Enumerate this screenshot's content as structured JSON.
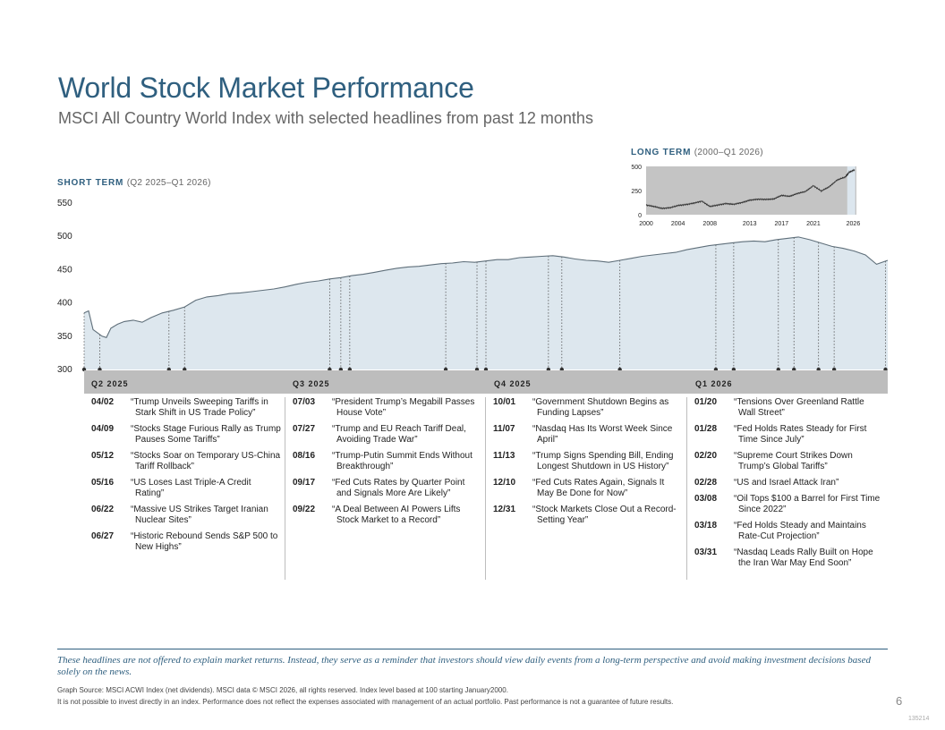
{
  "title": "World Stock Market Performance",
  "subtitle": "MSCI All Country World Index with selected headlines from past 12 months",
  "short_term": {
    "label": "SHORT TERM",
    "range": "(Q2 2025–Q1 2026)"
  },
  "long_term": {
    "label": "LONG TERM",
    "range": "(2000–Q1 2026)"
  },
  "quarters": [
    "Q2 2025",
    "Q3 2025",
    "Q4 2025",
    "Q1 2026"
  ],
  "headlines": [
    [
      {
        "date": "04/02",
        "text": "“Trump Unveils Sweeping Tariffs in Stark Shift in US Trade Policy”"
      },
      {
        "date": "04/09",
        "text": "“Stocks Stage Furious Rally as Trump Pauses Some Tariffs”"
      },
      {
        "date": "05/12",
        "text": "“Stocks Soar on Temporary US-China Tariff Rollback”"
      },
      {
        "date": "05/16",
        "text": "“US Loses Last Triple-A Credit Rating”"
      },
      {
        "date": "06/22",
        "text": "“Massive US Strikes Target Iranian Nuclear Sites”"
      },
      {
        "date": "06/27",
        "text": "“Historic Rebound Sends S&P 500 to New Highs”"
      }
    ],
    [
      {
        "date": "07/03",
        "text": "“President Trump’s Megabill Passes House Vote”"
      },
      {
        "date": "07/27",
        "text": "“Trump and EU Reach Tariff Deal, Avoiding Trade War”"
      },
      {
        "date": "08/16",
        "text": "“Trump-Putin Summit Ends Without Breakthrough”"
      },
      {
        "date": "09/17",
        "text": "“Fed Cuts Rates by Quarter Point and Signals More Are Likely”"
      },
      {
        "date": "09/22",
        "text": "“A Deal Between AI Powers Lifts Stock Market to a Record”"
      }
    ],
    [
      {
        "date": "10/01",
        "text": "“Government Shutdown Begins as Funding Lapses”"
      },
      {
        "date": "11/07",
        "text": "“Nasdaq Has Its Worst Week Since April”"
      },
      {
        "date": "11/13",
        "text": "“Trump Signs Spending Bill, Ending Longest Shutdown in US History”"
      },
      {
        "date": "12/10",
        "text": "“Fed Cuts Rates Again, Signals It May Be Done for Now”"
      },
      {
        "date": "12/31",
        "text": "“Stock Markets Close Out a Record-Setting Year”"
      }
    ],
    [
      {
        "date": "01/20",
        "text": "“Tensions Over Greenland Rattle Wall Street”"
      },
      {
        "date": "01/28",
        "text": "“Fed Holds Rates Steady for First Time Since July”"
      },
      {
        "date": "02/20",
        "text": "“Supreme Court Strikes Down Trump’s Global Tariffs”"
      },
      {
        "date": "02/28",
        "text": "“US and Israel Attack Iran”"
      },
      {
        "date": "03/08",
        "text": "“Oil Tops $100 a Barrel for First Time Since 2022”"
      },
      {
        "date": "03/18",
        "text": "“Fed Holds Steady and Maintains Rate-Cut Projection”"
      },
      {
        "date": "03/31",
        "text": "“Nasdaq Leads Rally Built on Hope the Iran War May End Soon”"
      }
    ]
  ],
  "disclaimer": "These headlines are not offered to explain market returns. Instead, they serve as a reminder that investors should view daily events from a long-term perspective and avoid making investment decisions based solely on the news.",
  "source_line1": "Graph Source: MSCI ACWI Index (net dividends). MSCI data © MSCI 2026, all rights reserved. Index level based at 100 starting January2000.",
  "source_line2": "It is not possible to invest directly in an index. Performance does not reflect the expenses associated with management of an actual portfolio. Past performance is not a guarantee of future results.",
  "page_number": "6",
  "code": "135214",
  "colors": {
    "title": "#2f5f7f",
    "area_fill": "#dde7ee",
    "area_line": "#5f6f7a",
    "bar": "#bdbdbd",
    "lt_bg": "#c4c4c4",
    "lt_hl": "#dce6ee"
  },
  "chart_data": [
    {
      "type": "area",
      "title": "SHORT TERM (Q2 2025–Q1 2026)",
      "ylim": [
        300,
        550
      ],
      "yticks": [
        550,
        500,
        450,
        400,
        350,
        300
      ],
      "x_days": [
        0,
        2,
        4,
        6,
        8,
        10,
        12,
        15,
        18,
        22,
        26,
        30,
        35,
        40,
        45,
        50,
        55,
        60,
        65,
        70,
        75,
        80,
        85,
        90,
        95,
        100,
        105,
        110,
        115,
        120,
        125,
        130,
        135,
        140,
        145,
        150,
        155,
        160,
        165,
        170,
        175,
        180,
        185,
        190,
        195,
        200,
        205,
        210,
        215,
        220,
        225,
        230,
        235,
        240,
        245,
        250,
        255,
        260,
        265,
        270,
        275,
        280,
        285,
        290,
        295,
        300,
        305,
        310,
        315,
        320,
        325,
        330,
        335,
        340,
        345,
        350,
        355,
        360
      ],
      "values": [
        385,
        388,
        360,
        355,
        350,
        348,
        362,
        368,
        372,
        374,
        371,
        378,
        385,
        389,
        394,
        404,
        409,
        411,
        414,
        415,
        417,
        419,
        421,
        424,
        428,
        431,
        433,
        436,
        438,
        441,
        443,
        446,
        449,
        452,
        454,
        455,
        457,
        459,
        460,
        462,
        461,
        463,
        465,
        465,
        468,
        469,
        470,
        471,
        469,
        466,
        464,
        463,
        461,
        464,
        467,
        470,
        472,
        474,
        476,
        480,
        483,
        486,
        488,
        490,
        492,
        493,
        492,
        495,
        497,
        499,
        495,
        490,
        485,
        482,
        478,
        472,
        458,
        464
      ],
      "event_markers_day": [
        0,
        7,
        38,
        45,
        110,
        115,
        119,
        162,
        176,
        180,
        208,
        214,
        240,
        283,
        291,
        311,
        318,
        329,
        336,
        359
      ]
    },
    {
      "type": "line",
      "title": "LONG TERM (2000–Q1 2026)",
      "ylim": [
        0,
        500
      ],
      "yticks": [
        500,
        250,
        0
      ],
      "xticks": [
        "2000",
        "2004",
        "2008",
        "2013",
        "2017",
        "2021",
        "2026"
      ],
      "x": [
        2000,
        2001,
        2002,
        2003,
        2004,
        2005,
        2006,
        2007,
        2008,
        2009,
        2010,
        2011,
        2012,
        2013,
        2014,
        2015,
        2016,
        2017,
        2018,
        2019,
        2020,
        2021,
        2022,
        2023,
        2024,
        2025,
        2025.5,
        2026.2
      ],
      "values": [
        100,
        85,
        65,
        72,
        95,
        105,
        120,
        140,
        85,
        100,
        115,
        108,
        125,
        150,
        160,
        158,
        162,
        200,
        190,
        220,
        240,
        300,
        245,
        290,
        360,
        390,
        440,
        465
      ],
      "highlight_range": [
        2025.25,
        2026.25
      ]
    }
  ]
}
